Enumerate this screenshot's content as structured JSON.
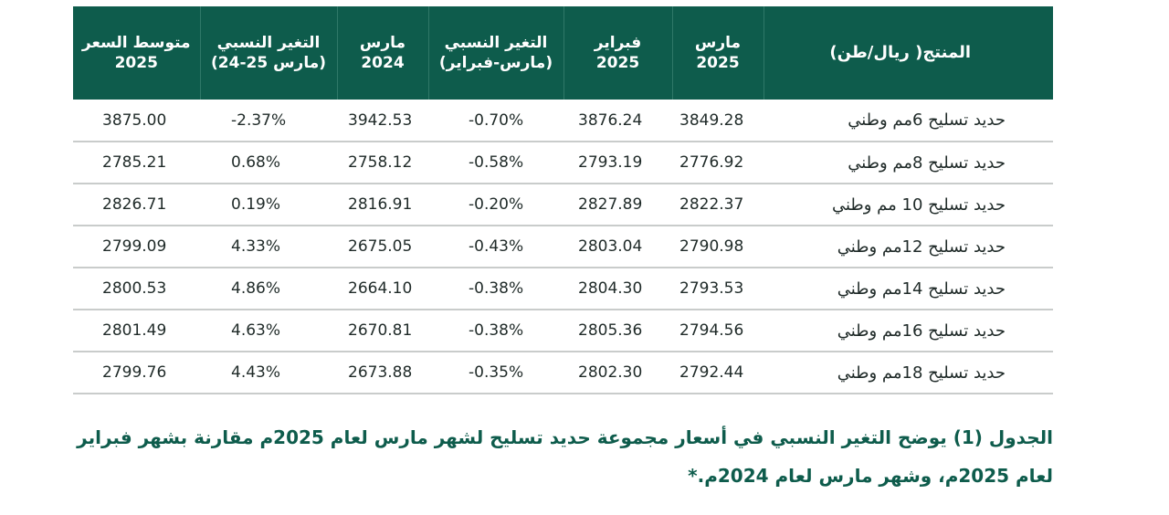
{
  "table": {
    "headers": {
      "product": "المنتج( ريال/طن)",
      "march_2025": "مارس\n2025",
      "feb_2025": "فبراير\n2025",
      "change_mar_feb": "التغير النسبي\n(مارس-فبراير)",
      "march_2024": "مارس\n2024",
      "change_mar_25_24": "التغير النسبي\n(مارس 25-24)",
      "avg_price_2025": "متوسط السعر\n2025"
    },
    "rows": [
      {
        "product": "حديد تسليح 6مم وطني",
        "march_2025": "3849.28",
        "feb_2025": "3876.24",
        "change_mar_feb": "-0.70%",
        "march_2024": "3942.53",
        "change_mar_25_24": "-2.37%",
        "avg_price_2025": "3875.00"
      },
      {
        "product": "حديد تسليح 8مم وطني",
        "march_2025": "2776.92",
        "feb_2025": "2793.19",
        "change_mar_feb": "-0.58%",
        "march_2024": "2758.12",
        "change_mar_25_24": "0.68%",
        "avg_price_2025": "2785.21"
      },
      {
        "product": "حديد تسليح 10 مم وطني",
        "march_2025": "2822.37",
        "feb_2025": "2827.89",
        "change_mar_feb": "-0.20%",
        "march_2024": "2816.91",
        "change_mar_25_24": "0.19%",
        "avg_price_2025": "2826.71"
      },
      {
        "product": "حديد تسليح 12مم وطني",
        "march_2025": "2790.98",
        "feb_2025": "2803.04",
        "change_mar_feb": "-0.43%",
        "march_2024": "2675.05",
        "change_mar_25_24": "4.33%",
        "avg_price_2025": "2799.09"
      },
      {
        "product": "حديد تسليح 14مم وطني",
        "march_2025": "2793.53",
        "feb_2025": "2804.30",
        "change_mar_feb": "-0.38%",
        "march_2024": "2664.10",
        "change_mar_25_24": "4.86%",
        "avg_price_2025": "2800.53"
      },
      {
        "product": "حديد تسليح 16مم وطني",
        "march_2025": "2794.56",
        "feb_2025": "2805.36",
        "change_mar_feb": "-0.38%",
        "march_2024": "2670.81",
        "change_mar_25_24": "4.63%",
        "avg_price_2025": "2801.49"
      },
      {
        "product": "حديد تسليح 18مم وطني",
        "march_2025": "2792.44",
        "feb_2025": "2802.30",
        "change_mar_feb": "-0.35%",
        "march_2024": "2673.88",
        "change_mar_25_24": "4.43%",
        "avg_price_2025": "2799.76"
      }
    ]
  },
  "caption": {
    "line1": "الجدول (1) يوضح التغير النسبي في أسعار مجموعة حديد تسليح لشهر مارس لعام 2025م مقارنة بشهر فبراير",
    "line2": "لعام 2025م، وشهر مارس لعام 2024م.*"
  },
  "colors": {
    "header_bg": "#0e5c4c",
    "header_text": "#ffffff",
    "caption_text": "#0e5c4c",
    "row_divider": "#c9cccb"
  }
}
